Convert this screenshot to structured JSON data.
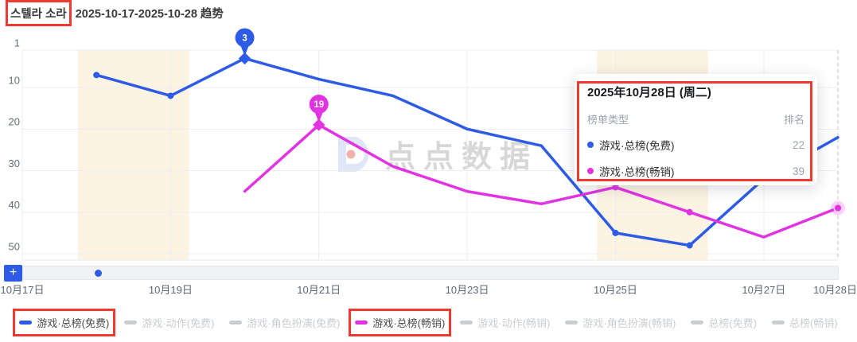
{
  "title": {
    "app_name": "스텔라 소라",
    "rest": "2025-10-17-2025-10-28 趋势"
  },
  "watermark": {
    "text": "点点数据"
  },
  "annotation_color": "#ef3b2f",
  "tooltip": {
    "title": "2025年10月28日 (周二)",
    "col_type": "榜单类型",
    "col_rank": "排名",
    "rows": [
      {
        "series": "游戏·总榜(免费)",
        "color": "#2d5be5",
        "rank": "22"
      },
      {
        "series": "游戏·总榜(畅销)",
        "color": "#e233e2",
        "rank": "39"
      }
    ]
  },
  "navigator": {
    "add_button": "+"
  },
  "legend": {
    "items": [
      {
        "label": "游戏·总榜(免费)",
        "color": "#2d5be5",
        "active": true,
        "annotated": true
      },
      {
        "label": "游戏·动作(免费)",
        "color": "#c9cdd2",
        "active": false,
        "annotated": false
      },
      {
        "label": "游戏·角色扮演(免费)",
        "color": "#c9cdd2",
        "active": false,
        "annotated": false
      },
      {
        "label": "游戏·总榜(畅销)",
        "color": "#e233e2",
        "active": true,
        "annotated": true
      },
      {
        "label": "游戏·动作(畅销)",
        "color": "#c9cdd2",
        "active": false,
        "annotated": false
      },
      {
        "label": "游戏·角色扮演(畅销)",
        "color": "#c9cdd2",
        "active": false,
        "annotated": false
      },
      {
        "label": "总榜(免费)",
        "color": "#c9cdd2",
        "active": false,
        "annotated": false
      },
      {
        "label": "总榜(畅销)",
        "color": "#c9cdd2",
        "active": false,
        "annotated": false
      }
    ]
  },
  "chart_data": {
    "type": "line",
    "title": "스텔라 소라 2025-10-17-2025-10-28 趋势",
    "x_dates": [
      "10-17",
      "10-18",
      "10-19",
      "10-20",
      "10-21",
      "10-22",
      "10-23",
      "10-24",
      "10-25",
      "10-26",
      "10-27",
      "10-28"
    ],
    "x_tick_dates": [
      "10-17",
      "10-19",
      "10-21",
      "10-23",
      "10-25",
      "10-27",
      "10-28"
    ],
    "x_tick_labels": [
      "10月17日",
      "10月19日",
      "10月21日",
      "10月23日",
      "10月25日",
      "10月27日",
      "10月28日"
    ],
    "y_axis": {
      "label": "排名",
      "ticks": [
        1,
        10,
        20,
        30,
        40,
        50
      ],
      "range": [
        1,
        50
      ],
      "inverted": true
    },
    "series": [
      {
        "name": "游戏·总榜(免费)",
        "color": "#2d5be5",
        "data": {
          "10-18": 7,
          "10-19": 12,
          "10-20": 3,
          "10-21": 8,
          "10-22": 12,
          "10-23": 20,
          "10-24": 24,
          "10-25": 45,
          "10-26": 48,
          "10-27": 32,
          "10-28": 22
        },
        "best_rank_badge": {
          "date": "10-20",
          "label": "3"
        },
        "dot_dates": [
          "10-18",
          "10-19",
          "10-25",
          "10-26"
        ]
      },
      {
        "name": "游戏·总榜(畅销)",
        "color": "#e233e2",
        "data": {
          "10-20": 35,
          "10-21": 19,
          "10-22": 29,
          "10-23": 35,
          "10-24": 38,
          "10-25": 34,
          "10-26": 40,
          "10-27": 46,
          "10-28": 39
        },
        "best_rank_badge": {
          "date": "10-21",
          "label": "19"
        },
        "dot_dates": [
          "10-25",
          "10-26"
        ],
        "hover_end_dot": "10-28"
      }
    ],
    "weekend_bands": [
      {
        "from": "10-18",
        "to": "10-19"
      },
      {
        "from": "10-25",
        "to": "10-26"
      }
    ],
    "hover": {
      "date": "10-28",
      "dashed_line": true
    }
  }
}
